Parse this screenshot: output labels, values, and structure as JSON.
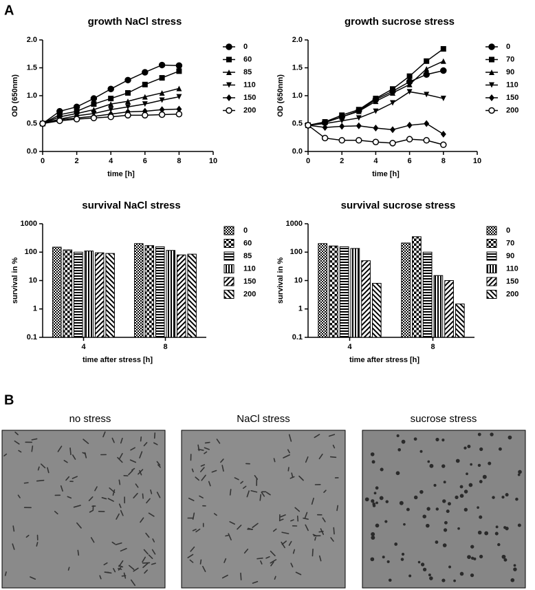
{
  "panels": [
    "A",
    "B"
  ],
  "chart_data": [
    {
      "type": "line",
      "title": "growth NaCl stress",
      "x_label": "time [h]",
      "y_label": "OD (650nm)",
      "x": [
        0,
        1,
        2,
        3,
        4,
        5,
        6,
        7,
        8
      ],
      "xlim": [
        0,
        10
      ],
      "xticks": [
        0,
        2,
        4,
        6,
        8,
        10
      ],
      "ylim": [
        0,
        2
      ],
      "yticks": [
        {
          "value": 0,
          "label": "0.0"
        },
        0.5,
        {
          "value": 1,
          "label": "1.0"
        },
        1.5,
        {
          "value": 2,
          "label": "2.0"
        }
      ],
      "series": [
        {
          "name": "0",
          "color": "#000000",
          "marker": "circle",
          "values": [
            0.5,
            0.72,
            0.8,
            0.95,
            1.12,
            1.28,
            1.42,
            1.55,
            1.54
          ]
        },
        {
          "name": "60",
          "color": "#000000",
          "marker": "square",
          "values": [
            0.5,
            0.66,
            0.72,
            0.85,
            0.95,
            1.05,
            1.2,
            1.32,
            1.44
          ]
        },
        {
          "name": "85",
          "color": "#000000",
          "marker": "triangle-up",
          "values": [
            0.5,
            0.62,
            0.68,
            0.75,
            0.85,
            0.9,
            0.98,
            1.05,
            1.13
          ]
        },
        {
          "name": "110",
          "color": "#000000",
          "marker": "triangle-down",
          "values": [
            0.5,
            0.58,
            0.64,
            0.68,
            0.75,
            0.8,
            0.85,
            0.92,
            0.98
          ]
        },
        {
          "name": "150",
          "color": "#000000",
          "marker": "diamond",
          "values": [
            0.5,
            0.57,
            0.6,
            0.63,
            0.67,
            0.71,
            0.72,
            0.75,
            0.76
          ]
        },
        {
          "name": "200",
          "color": "#000000",
          "marker": "circle-open",
          "values": [
            0.5,
            0.55,
            0.58,
            0.6,
            0.62,
            0.65,
            0.65,
            0.66,
            0.67
          ]
        }
      ]
    },
    {
      "type": "line",
      "title": "growth sucrose stress",
      "x_label": "time [h]",
      "y_label": "OD (650nm)",
      "x": [
        0,
        1,
        2,
        3,
        4,
        5,
        6,
        7,
        8
      ],
      "xlim": [
        0,
        10
      ],
      "xticks": [
        0,
        2,
        4,
        6,
        8,
        10
      ],
      "ylim": [
        0,
        2
      ],
      "yticks": [
        {
          "value": 0,
          "label": "0.0"
        },
        0.5,
        {
          "value": 1,
          "label": "1.0"
        },
        1.5,
        {
          "value": 2,
          "label": "2.0"
        }
      ],
      "series": [
        {
          "name": "0",
          "color": "#000000",
          "marker": "circle",
          "values": [
            0.47,
            0.52,
            0.62,
            0.73,
            0.93,
            1.08,
            1.25,
            1.38,
            1.45
          ]
        },
        {
          "name": "70",
          "color": "#000000",
          "marker": "square",
          "values": [
            0.47,
            0.53,
            0.65,
            0.75,
            0.95,
            1.12,
            1.35,
            1.62,
            1.84
          ]
        },
        {
          "name": "90",
          "color": "#000000",
          "marker": "triangle-up",
          "values": [
            0.47,
            0.52,
            0.62,
            0.72,
            0.9,
            1.05,
            1.2,
            1.48,
            1.62
          ]
        },
        {
          "name": "110",
          "color": "#000000",
          "marker": "triangle-down",
          "values": [
            0.47,
            0.5,
            0.55,
            0.6,
            0.72,
            0.87,
            1.07,
            1.02,
            0.95
          ]
        },
        {
          "name": "150",
          "color": "#000000",
          "marker": "diamond",
          "values": [
            0.47,
            0.43,
            0.45,
            0.46,
            0.42,
            0.39,
            0.47,
            0.5,
            0.31
          ]
        },
        {
          "name": "200",
          "color": "#000000",
          "marker": "circle-open",
          "values": [
            0.47,
            0.24,
            0.2,
            0.2,
            0.17,
            0.15,
            0.22,
            0.2,
            0.12
          ]
        }
      ]
    },
    {
      "type": "bar",
      "title": "survival NaCl stress",
      "x_label": "time after stress [h]",
      "y_label": "survival in %",
      "categories": [
        "4",
        "8"
      ],
      "yscale": "log",
      "ylim": [
        0.1,
        1000
      ],
      "yticks": [
        0.1,
        1,
        10,
        100,
        1000
      ],
      "series": [
        {
          "name": "0",
          "pattern": "checker-small",
          "values": [
            150,
            200
          ]
        },
        {
          "name": "60",
          "pattern": "checker",
          "values": [
            120,
            170
          ]
        },
        {
          "name": "85",
          "pattern": "hlines",
          "values": [
            100,
            155
          ]
        },
        {
          "name": "110",
          "pattern": "vlines",
          "values": [
            110,
            115
          ]
        },
        {
          "name": "150",
          "pattern": "diag",
          "values": [
            95,
            80
          ]
        },
        {
          "name": "200",
          "pattern": "diag-back",
          "values": [
            90,
            85
          ]
        }
      ]
    },
    {
      "type": "bar",
      "title": "survival sucrose stress",
      "x_label": "time after stress [h]",
      "y_label": "survival in %",
      "categories": [
        "4",
        "8"
      ],
      "yscale": "log",
      "ylim": [
        0.1,
        1000
      ],
      "yticks": [
        0.1,
        1,
        10,
        100,
        1000
      ],
      "series": [
        {
          "name": "0",
          "pattern": "checker-small",
          "values": [
            200,
            210
          ]
        },
        {
          "name": "70",
          "pattern": "checker",
          "values": [
            165,
            350
          ]
        },
        {
          "name": "90",
          "pattern": "hlines",
          "values": [
            155,
            100
          ]
        },
        {
          "name": "110",
          "pattern": "vlines",
          "values": [
            135,
            15
          ]
        },
        {
          "name": "150",
          "pattern": "diag",
          "values": [
            50,
            10
          ]
        },
        {
          "name": "200",
          "pattern": "diag-back",
          "values": [
            8,
            1.5
          ]
        }
      ]
    }
  ],
  "images": [
    {
      "title": "no stress"
    },
    {
      "title": "NaCl stress"
    },
    {
      "title": "sucrose stress"
    }
  ]
}
